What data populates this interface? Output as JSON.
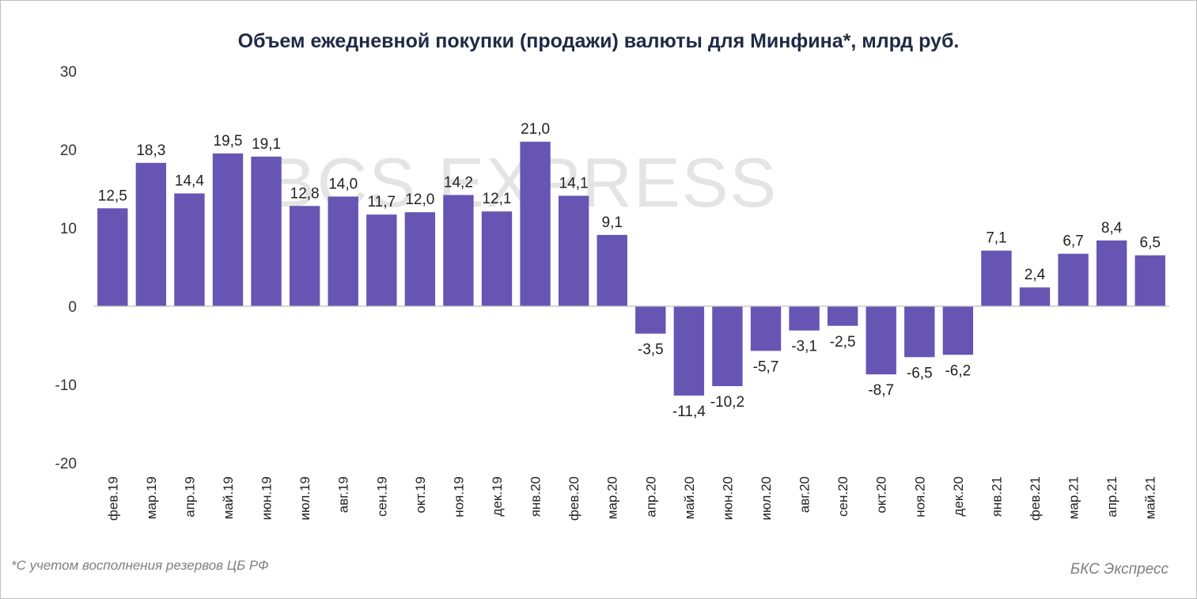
{
  "title": "Объем ежедневной покупки (продажи) валюты для Минфина*, млрд руб.",
  "watermark": "BCS EXPRESS",
  "footnote": "*С учетом восполнения резервов ЦБ РФ",
  "source": "БКС Экспресс",
  "colors": {
    "bar": "#6655b3",
    "axis": "#bfbfbf",
    "text": "#222222",
    "title": "#1f2a44",
    "note": "#7f7f7f"
  },
  "chart_data": {
    "type": "bar",
    "title": "Объем ежедневной покупки (продажи) валюты для Минфина*, млрд руб.",
    "xlabel": "",
    "ylabel": "",
    "ylim": [
      -20,
      30
    ],
    "yticks": [
      30,
      20,
      10,
      0,
      -10,
      -20
    ],
    "grid": false,
    "legend": "none",
    "categories": [
      "фев.19",
      "мар.19",
      "апр.19",
      "май.19",
      "июн.19",
      "июл.19",
      "авг.19",
      "сен.19",
      "окт.19",
      "ноя.19",
      "дек.19",
      "янв.20",
      "фев.20",
      "мар.20",
      "апр.20",
      "май.20",
      "июн.20",
      "июл.20",
      "авг.20",
      "сен.20",
      "окт.20",
      "ноя.20",
      "дек.20",
      "янв.21",
      "фев.21",
      "мар.21",
      "апр.21",
      "май.21"
    ],
    "values": [
      12.5,
      18.3,
      14.4,
      19.5,
      19.1,
      12.8,
      14.0,
      11.7,
      12.0,
      14.2,
      12.1,
      21.0,
      14.1,
      9.1,
      -3.5,
      -11.4,
      -10.2,
      -5.7,
      -3.1,
      -2.5,
      -8.7,
      -6.5,
      -6.2,
      7.1,
      2.4,
      6.7,
      8.4,
      6.5
    ],
    "labels": [
      "12,5",
      "18,3",
      "14,4",
      "19,5",
      "19,1",
      "12,8",
      "14,0",
      "11,7",
      "12,0",
      "14,2",
      "12,1",
      "21,0",
      "14,1",
      "9,1",
      "-3,5",
      "-11,4",
      "-10,2",
      "-5,7",
      "-3,1",
      "-2,5",
      "-8,7",
      "-6,5",
      "-6,2",
      "7,1",
      "2,4",
      "6,7",
      "8,4",
      "6,5"
    ]
  }
}
